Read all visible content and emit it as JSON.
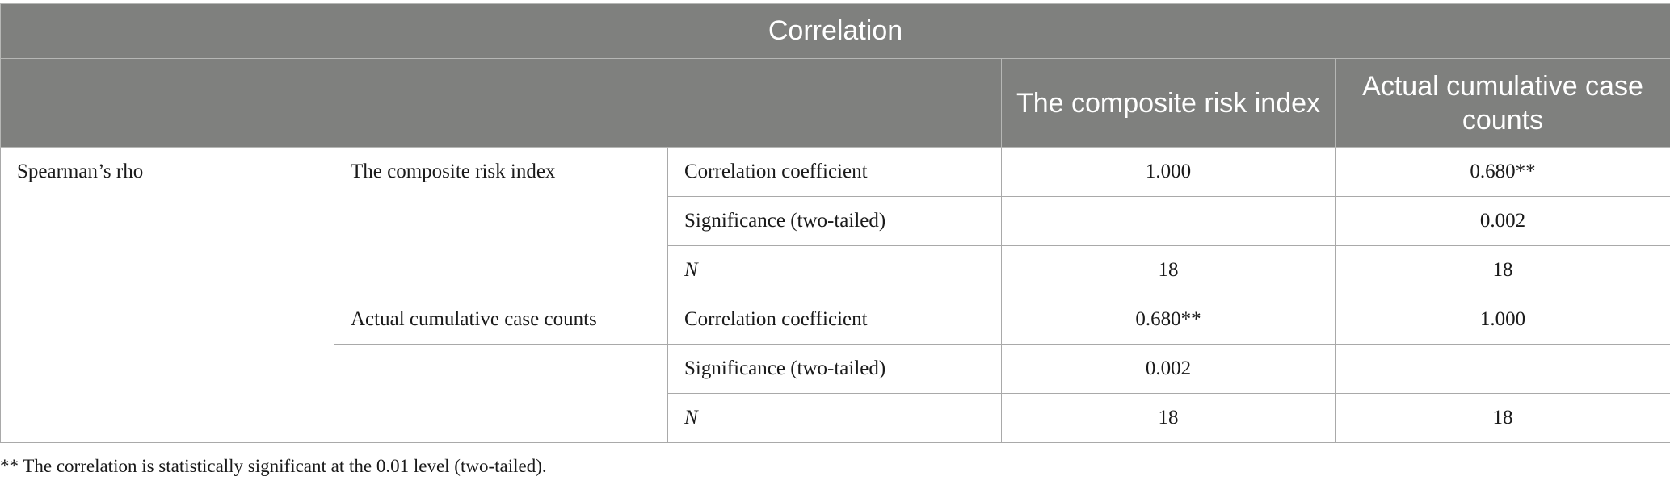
{
  "table": {
    "title": "Correlation",
    "col_headers": [
      "The composite risk index",
      "Actual cumulative case counts"
    ],
    "method": "Spearman’s rho",
    "groups": [
      {
        "variable": "The composite risk index",
        "rows": [
          {
            "stat": "Correlation coefficient",
            "v1": "1.000",
            "v2": "0.680**"
          },
          {
            "stat": "Significance (two-tailed)",
            "v1": "",
            "v2": "0.002"
          },
          {
            "stat": "N",
            "v1": "18",
            "v2": "18"
          }
        ]
      },
      {
        "variable": "Actual cumulative case counts",
        "rows": [
          {
            "stat": "Correlation coefficient",
            "v1": "0.680**",
            "v2": "1.000"
          },
          {
            "stat": "Significance (two-tailed)",
            "v1": "0.002",
            "v2": ""
          },
          {
            "stat": "N",
            "v1": "18",
            "v2": "18"
          }
        ]
      }
    ],
    "footnote": "** The correlation is statistically significant at the 0.01 level (two-tailed)."
  }
}
